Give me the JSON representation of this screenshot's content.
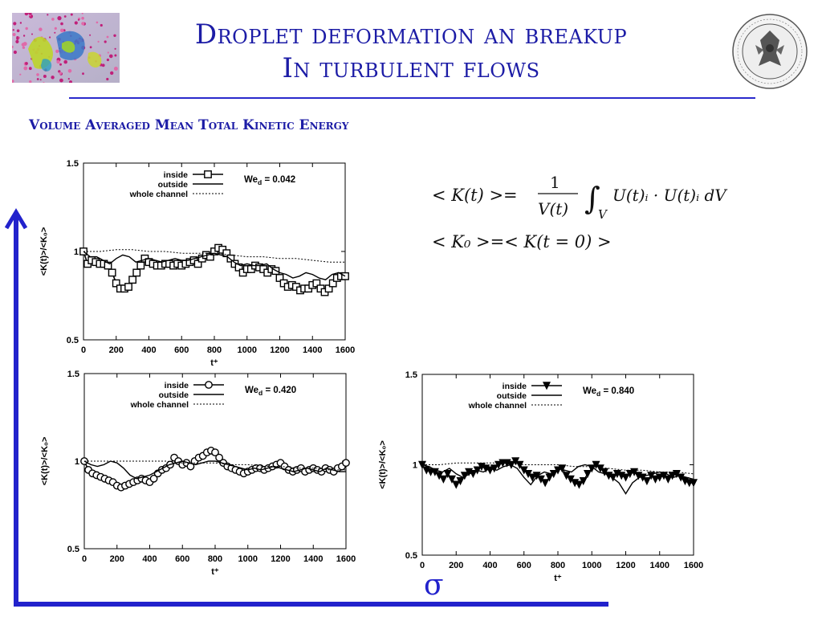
{
  "header": {
    "title_line1": "Droplet deformation an breakup",
    "title_line2": "In turbulent flows"
  },
  "section_title": "Volume  Averaged Mean Total Kinetic Energy",
  "formulas": {
    "line1_lhs": "< K(t) >=",
    "line1_frac_num": "1",
    "line1_frac_den": "V(t)",
    "line1_integral_sub": "V",
    "line1_integrand": "U(t)ᵢ · U(t)ᵢ dV",
    "line2": "< K₀ >=< K(t = 0) >"
  },
  "sigma_label": "σ",
  "colors": {
    "accent": "#1c1ca6",
    "arrow": "#2222cc"
  },
  "chart_data": [
    {
      "type": "line",
      "annotation": "We",
      "annotation_sub": "d",
      "annotation_value": "= 0.042",
      "ylabel": "<K(t)>/<K₀>",
      "xlabel": "t⁺",
      "xlim": [
        0,
        1600
      ],
      "ylim": [
        0.5,
        1.5
      ],
      "xticks": [
        0,
        200,
        400,
        600,
        800,
        1000,
        1200,
        1400,
        1600
      ],
      "yticks": [
        0.5,
        1,
        1.5
      ],
      "legend_position": "top-left",
      "series": [
        {
          "name": "inside",
          "marker": "square",
          "x": [
            0,
            25,
            50,
            75,
            100,
            125,
            150,
            175,
            200,
            225,
            250,
            275,
            300,
            325,
            350,
            375,
            400,
            425,
            450,
            475,
            500,
            525,
            550,
            575,
            600,
            625,
            650,
            675,
            700,
            725,
            750,
            775,
            800,
            825,
            850,
            875,
            900,
            925,
            950,
            975,
            1000,
            1025,
            1050,
            1075,
            1100,
            1125,
            1150,
            1175,
            1200,
            1225,
            1250,
            1275,
            1300,
            1325,
            1350,
            1375,
            1400,
            1425,
            1450,
            1475,
            1500,
            1525,
            1550,
            1575,
            1600
          ],
          "y": [
            1.0,
            0.93,
            0.95,
            0.94,
            0.93,
            0.93,
            0.92,
            0.88,
            0.82,
            0.79,
            0.79,
            0.8,
            0.84,
            0.88,
            0.92,
            0.96,
            0.94,
            0.93,
            0.92,
            0.92,
            0.93,
            0.93,
            0.92,
            0.93,
            0.92,
            0.93,
            0.94,
            0.95,
            0.93,
            0.96,
            0.98,
            0.97,
            1.0,
            1.02,
            1.01,
            0.99,
            0.96,
            0.93,
            0.91,
            0.88,
            0.9,
            0.9,
            0.92,
            0.91,
            0.9,
            0.88,
            0.9,
            0.89,
            0.85,
            0.82,
            0.8,
            0.81,
            0.8,
            0.78,
            0.79,
            0.79,
            0.81,
            0.82,
            0.79,
            0.77,
            0.79,
            0.82,
            0.85,
            0.86,
            0.86
          ]
        },
        {
          "name": "outside",
          "marker": "none",
          "x": [
            0,
            40,
            80,
            120,
            160,
            200,
            240,
            280,
            320,
            360,
            400,
            440,
            480,
            520,
            560,
            600,
            640,
            680,
            720,
            760,
            800,
            840,
            880,
            920,
            960,
            1000,
            1040,
            1080,
            1120,
            1160,
            1200,
            1240,
            1280,
            1320,
            1360,
            1400,
            1440,
            1480,
            1520,
            1560,
            1600
          ],
          "y": [
            1.0,
            0.97,
            0.97,
            0.95,
            0.93,
            0.96,
            0.98,
            0.97,
            0.94,
            0.95,
            0.96,
            0.95,
            0.94,
            0.95,
            0.96,
            0.95,
            0.95,
            0.96,
            0.97,
            0.98,
            0.99,
            0.98,
            0.97,
            0.94,
            0.92,
            0.93,
            0.92,
            0.92,
            0.93,
            0.9,
            0.88,
            0.87,
            0.85,
            0.86,
            0.88,
            0.87,
            0.85,
            0.84,
            0.87,
            0.88,
            0.86
          ]
        },
        {
          "name": "whole channel",
          "marker": "none",
          "dashed": true,
          "x": [
            0,
            100,
            200,
            300,
            400,
            500,
            600,
            700,
            800,
            900,
            1000,
            1100,
            1200,
            1300,
            1400,
            1500,
            1600
          ],
          "y": [
            1.0,
            1.0,
            1.01,
            1.01,
            1.0,
            1.0,
            0.99,
            0.99,
            0.99,
            0.98,
            0.97,
            0.97,
            0.96,
            0.96,
            0.95,
            0.94,
            0.94
          ]
        }
      ]
    },
    {
      "type": "line",
      "annotation": "We",
      "annotation_sub": "d",
      "annotation_value": "= 0.420",
      "ylabel": "<K(t)>/<K₀>",
      "xlabel": "t⁺",
      "xlim": [
        0,
        1600
      ],
      "ylim": [
        0.5,
        1.5
      ],
      "xticks": [
        0,
        200,
        400,
        600,
        800,
        1000,
        1200,
        1400,
        1600
      ],
      "yticks": [
        0.5,
        1,
        1.5
      ],
      "legend_position": "top-left",
      "series": [
        {
          "name": "inside",
          "marker": "circle",
          "x": [
            0,
            25,
            50,
            75,
            100,
            125,
            150,
            175,
            200,
            225,
            250,
            275,
            300,
            325,
            350,
            375,
            400,
            425,
            450,
            475,
            500,
            525,
            550,
            575,
            600,
            625,
            650,
            675,
            700,
            725,
            750,
            775,
            800,
            825,
            850,
            875,
            900,
            925,
            950,
            975,
            1000,
            1025,
            1050,
            1075,
            1100,
            1125,
            1150,
            1175,
            1200,
            1225,
            1250,
            1275,
            1300,
            1325,
            1350,
            1375,
            1400,
            1425,
            1450,
            1475,
            1500,
            1525,
            1550,
            1575,
            1600
          ],
          "y": [
            1.0,
            0.95,
            0.93,
            0.92,
            0.91,
            0.9,
            0.89,
            0.88,
            0.86,
            0.85,
            0.86,
            0.87,
            0.88,
            0.89,
            0.9,
            0.89,
            0.88,
            0.9,
            0.93,
            0.95,
            0.96,
            0.98,
            1.02,
            1.0,
            0.98,
            0.99,
            0.97,
            1.0,
            1.02,
            1.03,
            1.05,
            1.06,
            1.05,
            1.02,
            0.99,
            0.97,
            0.96,
            0.95,
            0.94,
            0.93,
            0.94,
            0.95,
            0.96,
            0.96,
            0.95,
            0.96,
            0.97,
            0.98,
            0.99,
            0.97,
            0.95,
            0.94,
            0.95,
            0.96,
            0.94,
            0.95,
            0.96,
            0.95,
            0.94,
            0.96,
            0.95,
            0.94,
            0.96,
            0.97,
            0.99
          ]
        },
        {
          "name": "outside",
          "marker": "none",
          "x": [
            0,
            40,
            80,
            120,
            160,
            200,
            240,
            280,
            320,
            360,
            400,
            440,
            480,
            520,
            560,
            600,
            640,
            680,
            720,
            760,
            800,
            840,
            880,
            920,
            960,
            1000,
            1040,
            1080,
            1120,
            1160,
            1200,
            1240,
            1280,
            1320,
            1360,
            1400,
            1440,
            1480,
            1520,
            1560,
            1600
          ],
          "y": [
            1.0,
            0.98,
            0.97,
            0.98,
            1.0,
            0.99,
            0.96,
            0.92,
            0.9,
            0.91,
            0.92,
            0.94,
            0.96,
            0.98,
            0.99,
            1.0,
            0.99,
            0.98,
            0.99,
            1.0,
            1.0,
            0.99,
            0.98,
            0.97,
            0.96,
            0.95,
            0.96,
            0.95,
            0.96,
            0.97,
            0.96,
            0.95,
            0.94,
            0.95,
            0.96,
            0.95,
            0.94,
            0.96,
            0.95,
            0.94,
            0.94
          ]
        },
        {
          "name": "whole channel",
          "marker": "none",
          "dashed": true,
          "x": [
            0,
            100,
            200,
            300,
            400,
            500,
            600,
            700,
            800,
            900,
            1000,
            1100,
            1200,
            1300,
            1400,
            1500,
            1600
          ],
          "y": [
            1.0,
            1.0,
            1.0,
            1.0,
            1.0,
            1.0,
            0.99,
            0.99,
            0.99,
            0.98,
            0.98,
            0.97,
            0.97,
            0.96,
            0.96,
            0.95,
            0.95
          ]
        }
      ]
    },
    {
      "type": "line",
      "annotation": "We",
      "annotation_sub": "d",
      "annotation_value": "= 0.840",
      "ylabel": "<K(t)>/<K₀>",
      "xlabel": "t⁺",
      "xlim": [
        0,
        1600
      ],
      "ylim": [
        0.5,
        1.5
      ],
      "xticks": [
        0,
        200,
        400,
        600,
        800,
        1000,
        1200,
        1400,
        1600
      ],
      "yticks": [
        0.5,
        1,
        1.5
      ],
      "legend_position": "top-left",
      "series": [
        {
          "name": "inside",
          "marker": "triangle-down",
          "x": [
            0,
            25,
            50,
            75,
            100,
            125,
            150,
            175,
            200,
            225,
            250,
            275,
            300,
            325,
            350,
            375,
            400,
            425,
            450,
            475,
            500,
            525,
            550,
            575,
            600,
            625,
            650,
            675,
            700,
            725,
            750,
            775,
            800,
            825,
            850,
            875,
            900,
            925,
            950,
            975,
            1000,
            1025,
            1050,
            1075,
            1100,
            1125,
            1150,
            1175,
            1200,
            1225,
            1250,
            1275,
            1300,
            1325,
            1350,
            1375,
            1400,
            1425,
            1450,
            1475,
            1500,
            1525,
            1550,
            1575,
            1600
          ],
          "y": [
            1.0,
            0.97,
            0.96,
            0.96,
            0.94,
            0.92,
            0.95,
            0.92,
            0.89,
            0.91,
            0.94,
            0.96,
            0.95,
            0.97,
            0.99,
            0.98,
            0.97,
            0.98,
            1.0,
            1.01,
            1.01,
            1.0,
            1.02,
            1.0,
            0.97,
            0.95,
            0.93,
            0.94,
            0.92,
            0.9,
            0.93,
            0.95,
            0.97,
            0.98,
            0.94,
            0.92,
            0.9,
            0.89,
            0.91,
            0.95,
            0.98,
            1.0,
            0.98,
            0.96,
            0.94,
            0.93,
            0.95,
            0.94,
            0.93,
            0.95,
            0.96,
            0.94,
            0.93,
            0.91,
            0.94,
            0.92,
            0.93,
            0.94,
            0.92,
            0.94,
            0.95,
            0.93,
            0.91,
            0.9,
            0.9
          ]
        },
        {
          "name": "outside",
          "marker": "none",
          "x": [
            0,
            40,
            80,
            120,
            160,
            200,
            240,
            280,
            320,
            360,
            400,
            440,
            480,
            520,
            560,
            600,
            640,
            680,
            720,
            760,
            800,
            840,
            880,
            920,
            960,
            1000,
            1040,
            1080,
            1120,
            1160,
            1200,
            1240,
            1280,
            1320,
            1360,
            1400,
            1440,
            1480,
            1520,
            1560,
            1600
          ],
          "y": [
            1.0,
            0.99,
            0.97,
            0.96,
            0.98,
            0.95,
            0.93,
            0.95,
            0.97,
            0.96,
            0.98,
            0.97,
            0.99,
            1.0,
            0.98,
            0.93,
            0.89,
            0.94,
            0.96,
            0.95,
            0.98,
            0.97,
            0.96,
            0.99,
            1.0,
            0.99,
            0.96,
            0.95,
            0.93,
            0.9,
            0.84,
            0.9,
            0.93,
            0.94,
            0.95,
            0.96,
            0.95,
            0.93,
            0.94,
            0.93,
            0.92
          ]
        },
        {
          "name": "whole channel",
          "marker": "none",
          "dashed": true,
          "x": [
            0,
            100,
            200,
            300,
            400,
            500,
            600,
            700,
            800,
            900,
            1000,
            1100,
            1200,
            1300,
            1400,
            1500,
            1600
          ],
          "y": [
            1.0,
            1.0,
            1.01,
            1.01,
            1.01,
            1.01,
            1.0,
            1.0,
            1.0,
            0.99,
            0.99,
            0.98,
            0.97,
            0.97,
            0.96,
            0.96,
            0.95
          ]
        }
      ]
    }
  ]
}
